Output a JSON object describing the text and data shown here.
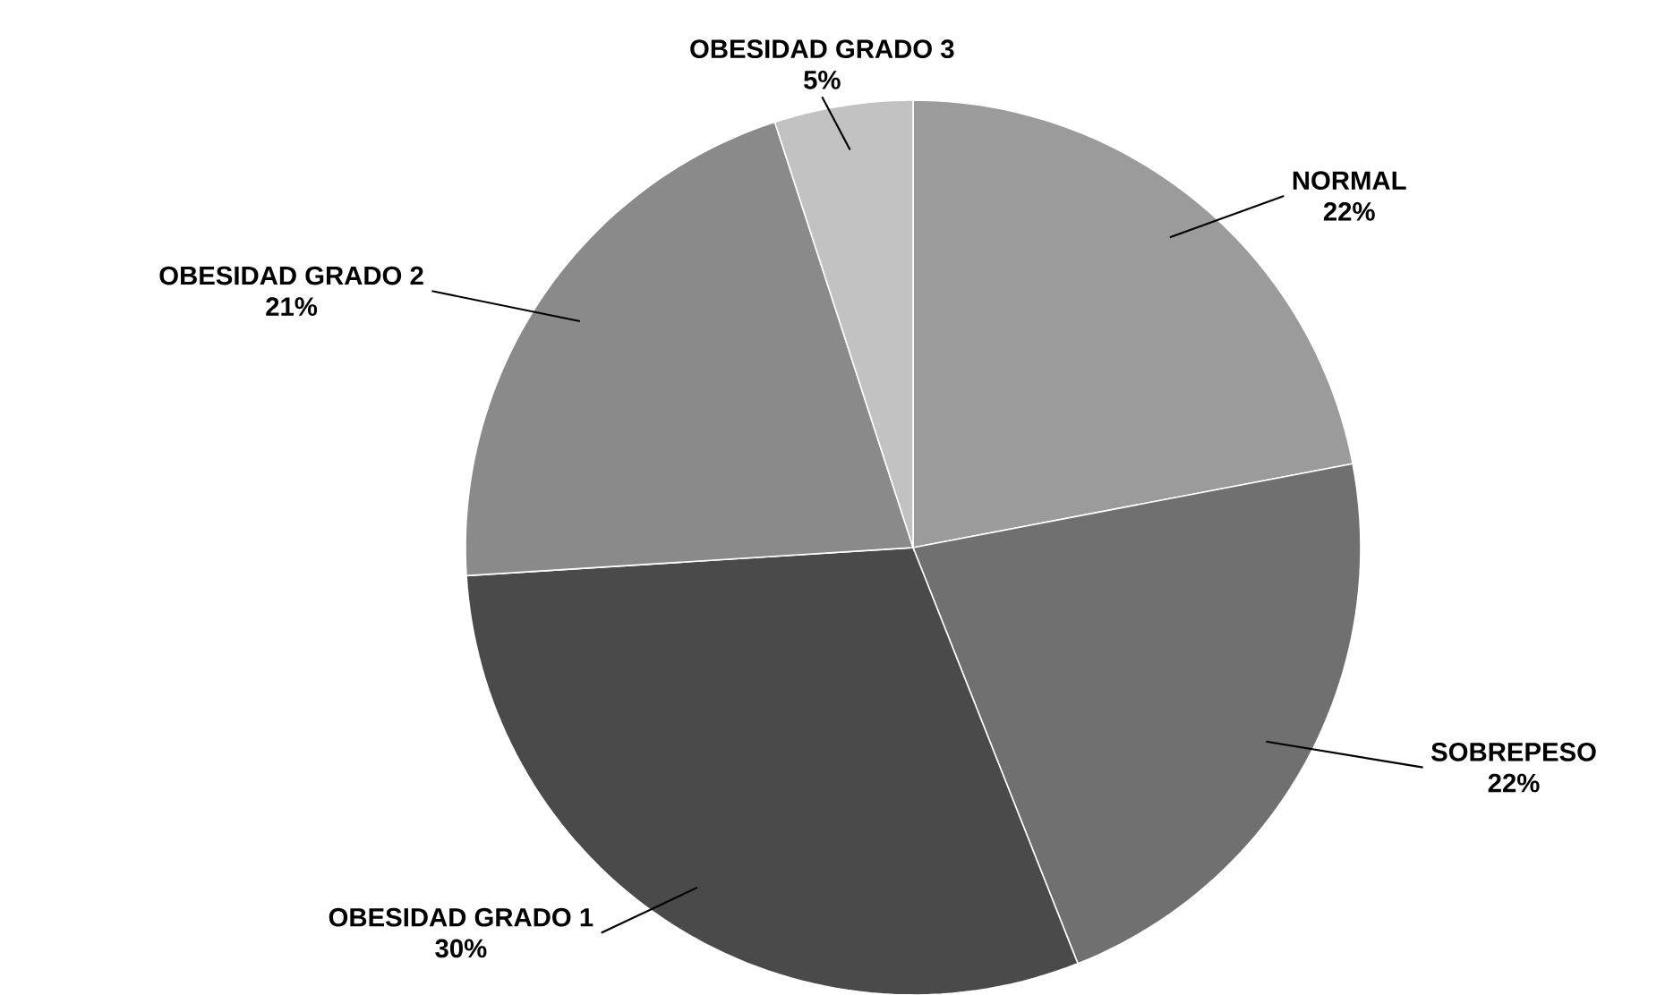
{
  "chart_data": {
    "type": "pie",
    "categories": [
      "NORMAL",
      "SOBREPESO",
      "OBESIDAD GRADO 1",
      "OBESIDAD GRADO 2",
      "OBESIDAD GRADO 3"
    ],
    "values": [
      22,
      22,
      30,
      21,
      5
    ],
    "value_labels": [
      "22%",
      "22%",
      "30%",
      "21%",
      "5%"
    ],
    "colors": [
      "#9b9b9b",
      "#707070",
      "#4a4a4a",
      "#8a8a8a",
      "#c2c2c2"
    ]
  }
}
